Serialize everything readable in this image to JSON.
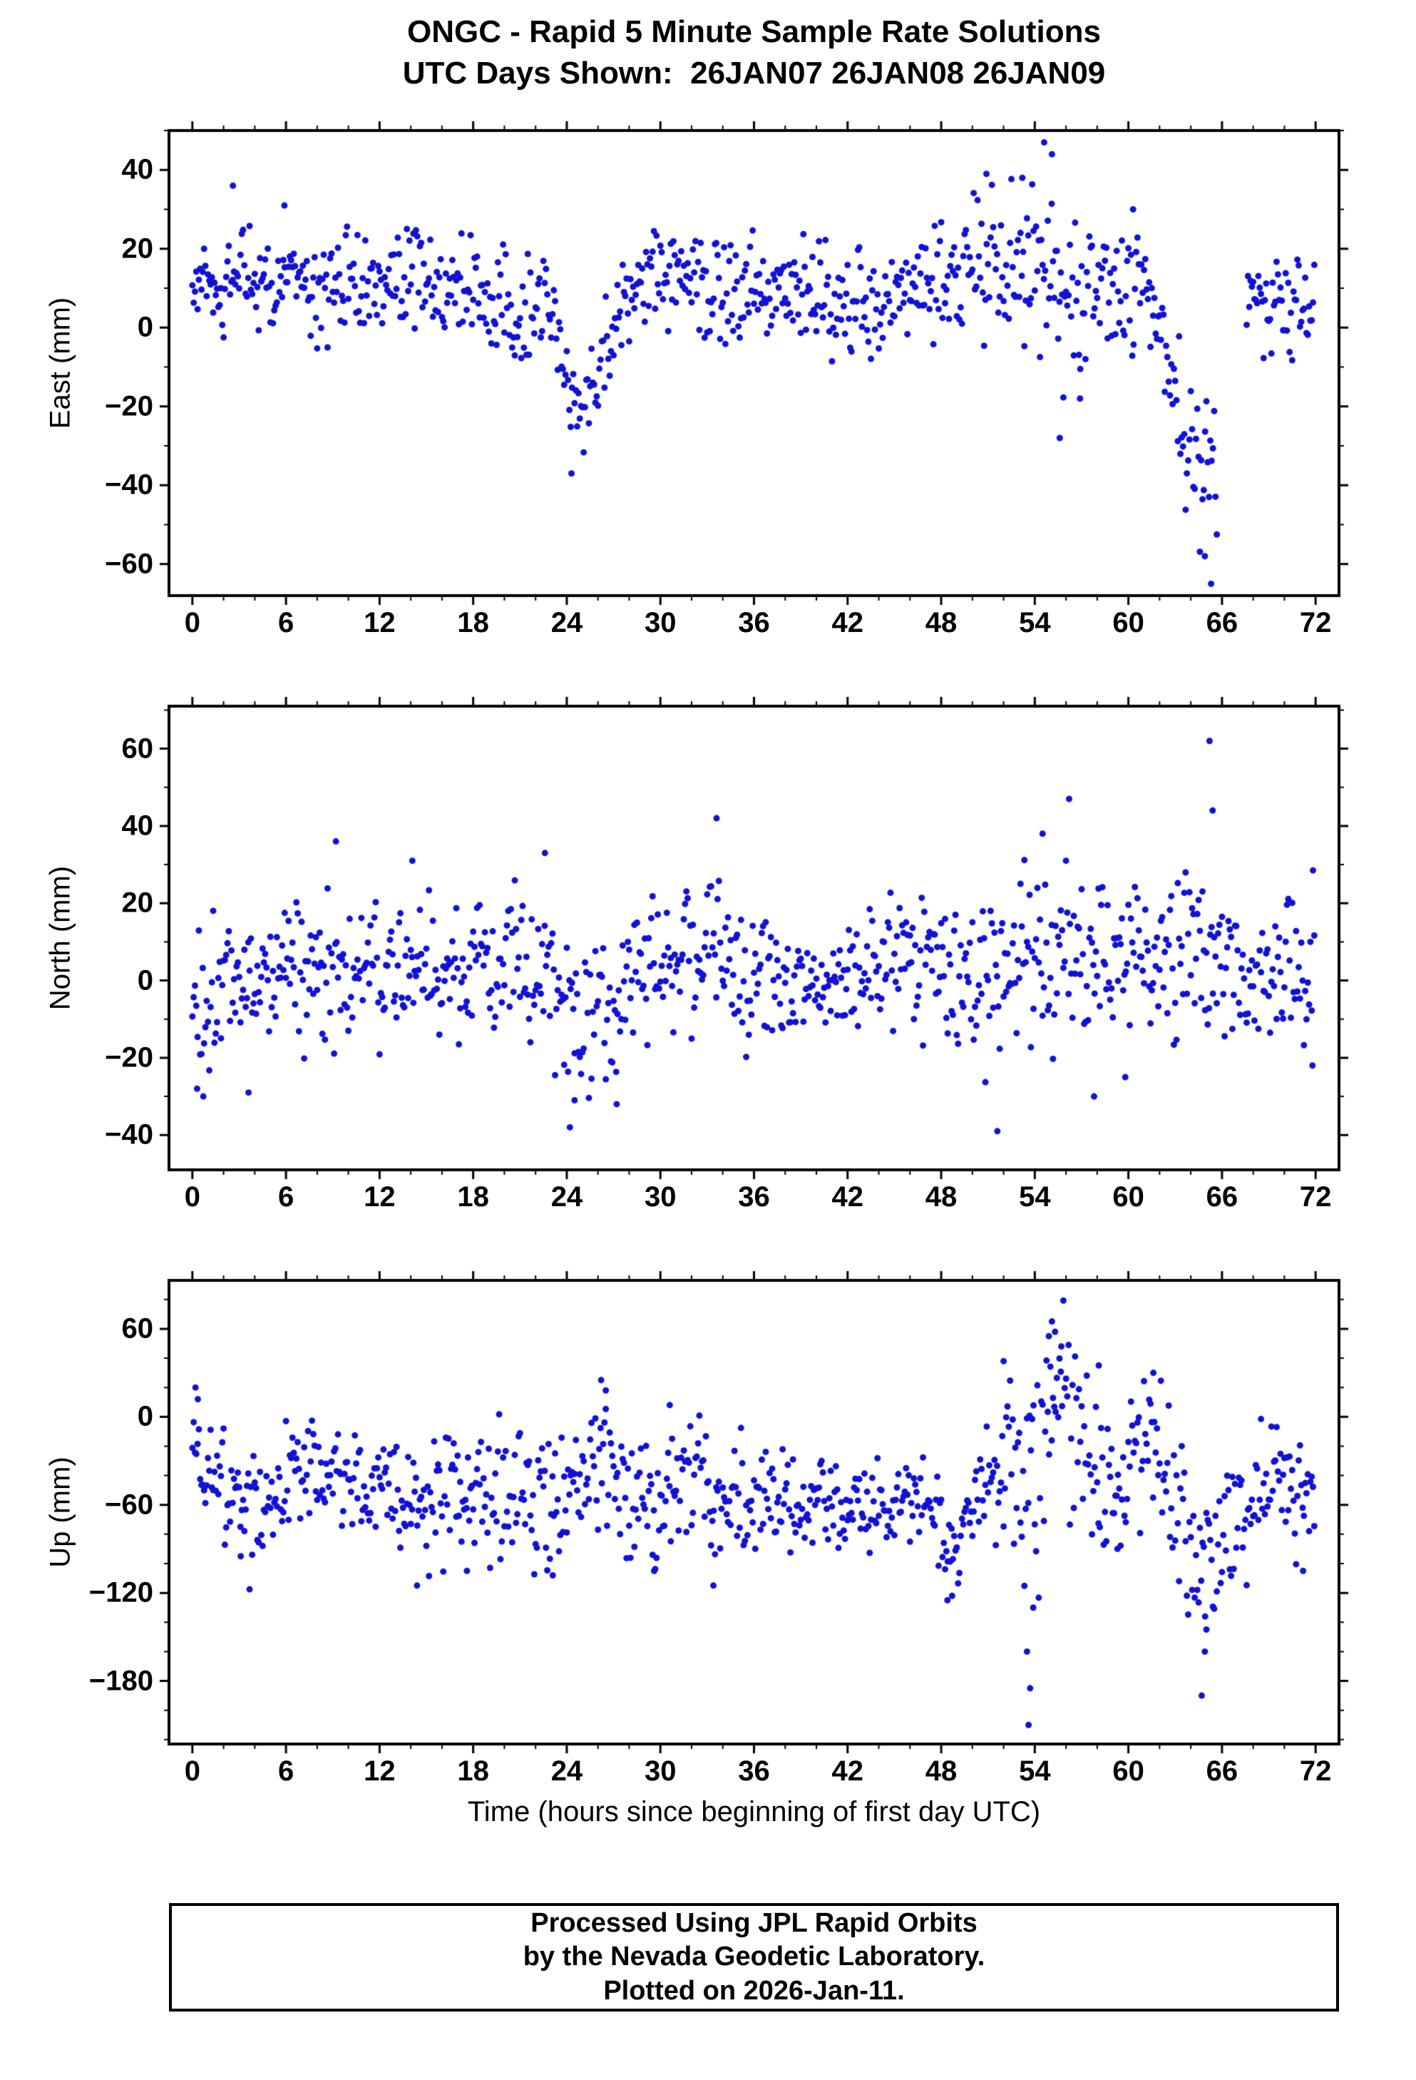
{
  "title": {
    "line1": "ONGC - Rapid 5 Minute Sample Rate Solutions",
    "line2": "UTC Days Shown:  26JAN07 26JAN08 26JAN09"
  },
  "xlabel": "Time (hours since beginning of first day UTC)",
  "footer": {
    "line1": "Processed Using JPL Rapid Orbits",
    "line2": "by the Nevada Geodetic Laboratory.",
    "line3": "Plotted on 2026-Jan-11."
  },
  "style": {
    "dot_color": "#1212d6",
    "frame_color": "#000000",
    "dot_radius": 4.5
  },
  "chart_data": [
    {
      "type": "scatter",
      "name": "east",
      "ylabel": "East (mm)",
      "xlim": [
        -1.5,
        73.5
      ],
      "ylim": [
        -68,
        50
      ],
      "xticks": [
        0,
        6,
        12,
        18,
        24,
        30,
        36,
        42,
        48,
        54,
        60,
        66,
        72
      ],
      "yticks": [
        40,
        20,
        0,
        -20,
        -40,
        -60
      ],
      "xtick_minor": 2,
      "ytick_minor": 10,
      "sample_minutes": 5,
      "n_points": 864,
      "anchor_format": [
        "hour",
        "mean_mm",
        "sigma_mm"
      ],
      "pattern": {
        "anchors": [
          [
            0,
            6,
            5
          ],
          [
            0.8,
            11,
            6
          ],
          [
            2,
            13,
            7
          ],
          [
            4,
            13,
            7
          ],
          [
            6,
            12,
            6
          ],
          [
            8,
            9,
            7
          ],
          [
            10,
            11,
            6
          ],
          [
            12,
            12,
            6
          ],
          [
            14,
            12,
            6
          ],
          [
            16,
            12,
            6
          ],
          [
            18,
            11,
            6
          ],
          [
            19.5,
            6,
            7
          ],
          [
            21,
            2,
            7
          ],
          [
            22.5,
            7,
            6
          ],
          [
            23.4,
            2,
            6
          ],
          [
            24,
            -16,
            7
          ],
          [
            24.7,
            -23,
            6
          ],
          [
            25.6,
            -16,
            6
          ],
          [
            26.5,
            -6,
            7
          ],
          [
            27.5,
            3,
            6
          ],
          [
            29,
            12,
            6
          ],
          [
            31,
            13,
            7
          ],
          [
            33,
            11,
            6
          ],
          [
            35,
            10,
            6
          ],
          [
            37,
            11,
            6
          ],
          [
            39,
            10,
            6
          ],
          [
            41,
            8,
            7
          ],
          [
            43,
            4,
            7
          ],
          [
            45,
            7,
            6
          ],
          [
            47,
            9,
            7
          ],
          [
            48.8,
            13,
            9
          ],
          [
            50.3,
            19,
            9
          ],
          [
            52,
            13,
            10
          ],
          [
            53.5,
            15,
            11
          ],
          [
            55,
            13,
            12
          ],
          [
            56.5,
            7,
            10
          ],
          [
            58,
            11,
            8
          ],
          [
            59.5,
            13,
            8
          ],
          [
            61,
            11,
            7
          ],
          [
            62.2,
            -4,
            8
          ],
          [
            63,
            -19,
            9
          ],
          [
            64,
            -29,
            10
          ],
          [
            65,
            -37,
            11
          ],
          [
            65.6,
            -42,
            12
          ],
          [
            67.6,
            6,
            6
          ],
          [
            69,
            7,
            7
          ],
          [
            70.5,
            6,
            7
          ],
          [
            71.9,
            3,
            7
          ]
        ],
        "outliers": [
          [
            2.6,
            36
          ],
          [
            5.9,
            31
          ],
          [
            24.3,
            -37
          ],
          [
            50.9,
            39
          ],
          [
            53.2,
            38
          ],
          [
            54.6,
            47
          ],
          [
            55.1,
            44
          ],
          [
            55.6,
            -28
          ],
          [
            56.9,
            -18
          ],
          [
            60.3,
            30
          ],
          [
            64.9,
            -58
          ],
          [
            65.3,
            -65
          ]
        ],
        "gaps": [
          [
            65.7,
            67.5
          ]
        ]
      }
    },
    {
      "type": "scatter",
      "name": "north",
      "ylabel": "North (mm)",
      "xlim": [
        -1.5,
        73.5
      ],
      "ylim": [
        -49,
        71
      ],
      "xticks": [
        0,
        6,
        12,
        18,
        24,
        30,
        36,
        42,
        48,
        54,
        60,
        66,
        72
      ],
      "yticks": [
        60,
        40,
        20,
        0,
        -20,
        -40
      ],
      "xtick_minor": 2,
      "ytick_minor": 10,
      "sample_minutes": 5,
      "n_points": 864,
      "anchor_format": [
        "hour",
        "mean_mm",
        "sigma_mm"
      ],
      "pattern": {
        "anchors": [
          [
            0,
            -3,
            10
          ],
          [
            0.6,
            -6,
            12
          ],
          [
            1.5,
            2,
            8
          ],
          [
            3,
            0,
            9
          ],
          [
            5,
            2,
            8
          ],
          [
            7,
            3,
            9
          ],
          [
            9,
            4,
            10
          ],
          [
            11,
            2,
            9
          ],
          [
            13,
            3,
            9
          ],
          [
            15,
            2,
            9
          ],
          [
            17,
            3,
            8
          ],
          [
            19,
            2,
            9
          ],
          [
            21,
            4,
            9
          ],
          [
            23,
            0,
            9
          ],
          [
            24.3,
            -12,
            10
          ],
          [
            25.3,
            -9,
            10
          ],
          [
            26.5,
            -5,
            10
          ],
          [
            28,
            4,
            9
          ],
          [
            30,
            6,
            9
          ],
          [
            32,
            5,
            9
          ],
          [
            33.6,
            8,
            11
          ],
          [
            35,
            3,
            9
          ],
          [
            37,
            2,
            8
          ],
          [
            39,
            3,
            8
          ],
          [
            41,
            2,
            8
          ],
          [
            43,
            5,
            9
          ],
          [
            45,
            6,
            9
          ],
          [
            47,
            4,
            9
          ],
          [
            49,
            5,
            10
          ],
          [
            51,
            2,
            12
          ],
          [
            53,
            8,
            12
          ],
          [
            55,
            10,
            13
          ],
          [
            56.5,
            8,
            12
          ],
          [
            58,
            5,
            10
          ],
          [
            60,
            4,
            10
          ],
          [
            62,
            6,
            10
          ],
          [
            63.5,
            8,
            11
          ],
          [
            65,
            9,
            13
          ],
          [
            66.5,
            5,
            9
          ],
          [
            68,
            4,
            9
          ],
          [
            70,
            5,
            9
          ],
          [
            71.9,
            3,
            10
          ]
        ],
        "outliers": [
          [
            0.3,
            -28
          ],
          [
            0.7,
            -30
          ],
          [
            3.6,
            -29
          ],
          [
            9.2,
            36
          ],
          [
            14.1,
            31
          ],
          [
            22.6,
            33
          ],
          [
            24.2,
            -38
          ],
          [
            24.5,
            -31
          ],
          [
            27.2,
            -32
          ],
          [
            33.6,
            42
          ],
          [
            51.6,
            -39
          ],
          [
            54.5,
            38
          ],
          [
            56.2,
            47
          ],
          [
            57.8,
            -30
          ],
          [
            59.8,
            -25
          ],
          [
            65.2,
            62
          ],
          [
            65.4,
            44
          ],
          [
            71.8,
            -22
          ]
        ],
        "gaps": []
      }
    },
    {
      "type": "scatter",
      "name": "up",
      "ylabel": "Up (mm)",
      "xlim": [
        -1.5,
        73.5
      ],
      "ylim": [
        -223,
        93
      ],
      "xticks": [
        0,
        6,
        12,
        18,
        24,
        30,
        36,
        42,
        48,
        54,
        60,
        66,
        72
      ],
      "yticks": [
        60,
        0,
        -60,
        -120,
        -180
      ],
      "xtick_minor": 2,
      "ytick_minor": 20,
      "sample_minutes": 5,
      "n_points": 864,
      "anchor_format": [
        "hour",
        "mean_mm",
        "sigma_mm"
      ],
      "pattern": {
        "anchors": [
          [
            0,
            -12,
            18
          ],
          [
            0.7,
            -30,
            20
          ],
          [
            2,
            -50,
            20
          ],
          [
            3.5,
            -58,
            22
          ],
          [
            5,
            -50,
            18
          ],
          [
            6.5,
            -40,
            18
          ],
          [
            8,
            -26,
            14
          ],
          [
            9.5,
            -40,
            18
          ],
          [
            11,
            -45,
            18
          ],
          [
            12.5,
            -50,
            18
          ],
          [
            14,
            -55,
            20
          ],
          [
            15.5,
            -60,
            20
          ],
          [
            17,
            -55,
            22
          ],
          [
            18.5,
            -60,
            22
          ],
          [
            20,
            -55,
            20
          ],
          [
            21.5,
            -60,
            20
          ],
          [
            23,
            -60,
            22
          ],
          [
            24.5,
            -45,
            20
          ],
          [
            25.8,
            -25,
            22
          ],
          [
            27,
            -35,
            25
          ],
          [
            28.5,
            -55,
            22
          ],
          [
            29.8,
            -60,
            25
          ],
          [
            31,
            -35,
            20
          ],
          [
            32.5,
            -45,
            22
          ],
          [
            34,
            -58,
            22
          ],
          [
            35.5,
            -55,
            20
          ],
          [
            37,
            -55,
            18
          ],
          [
            38.5,
            -60,
            18
          ],
          [
            40,
            -55,
            18
          ],
          [
            41.5,
            -60,
            16
          ],
          [
            43,
            -60,
            14
          ],
          [
            44.5,
            -62,
            14
          ],
          [
            46,
            -60,
            13
          ],
          [
            47.5,
            -65,
            15
          ],
          [
            48.6,
            -85,
            18
          ],
          [
            50,
            -60,
            22
          ],
          [
            51.5,
            -35,
            28
          ],
          [
            52.3,
            -15,
            30
          ],
          [
            53.3,
            -80,
            50
          ],
          [
            54.1,
            -35,
            45
          ],
          [
            54.9,
            15,
            30
          ],
          [
            55.6,
            22,
            28
          ],
          [
            56.4,
            -5,
            30
          ],
          [
            57.5,
            -25,
            28
          ],
          [
            58.6,
            -45,
            28
          ],
          [
            60,
            -30,
            25
          ],
          [
            61.5,
            -15,
            25
          ],
          [
            62.5,
            -40,
            25
          ],
          [
            63.5,
            -80,
            28
          ],
          [
            64.5,
            -108,
            28
          ],
          [
            65.3,
            -95,
            28
          ],
          [
            66.3,
            -75,
            25
          ],
          [
            67.5,
            -60,
            22
          ],
          [
            69,
            -45,
            18
          ],
          [
            70.5,
            -55,
            22
          ],
          [
            71.9,
            -65,
            20
          ]
        ],
        "outliers": [
          [
            0.2,
            20
          ],
          [
            0.35,
            12
          ],
          [
            3.1,
            -95
          ],
          [
            14.4,
            -115
          ],
          [
            17.6,
            -105
          ],
          [
            23.1,
            -108
          ],
          [
            26.2,
            25
          ],
          [
            26.5,
            18
          ],
          [
            29.6,
            -105
          ],
          [
            30.6,
            8
          ],
          [
            33.4,
            -115
          ],
          [
            48.4,
            -125
          ],
          [
            48.7,
            -122
          ],
          [
            52.0,
            38
          ],
          [
            53.5,
            -160
          ],
          [
            53.6,
            -210
          ],
          [
            53.7,
            -185
          ],
          [
            53.9,
            -130
          ],
          [
            54.9,
            55
          ],
          [
            55.1,
            65
          ],
          [
            55.3,
            58
          ],
          [
            55.7,
            48
          ],
          [
            58.1,
            35
          ],
          [
            59.3,
            -90
          ],
          [
            61.6,
            30
          ],
          [
            64.7,
            -190
          ],
          [
            64.9,
            -160
          ],
          [
            65.0,
            -145
          ],
          [
            71.2,
            -105
          ]
        ],
        "gaps": []
      }
    }
  ]
}
